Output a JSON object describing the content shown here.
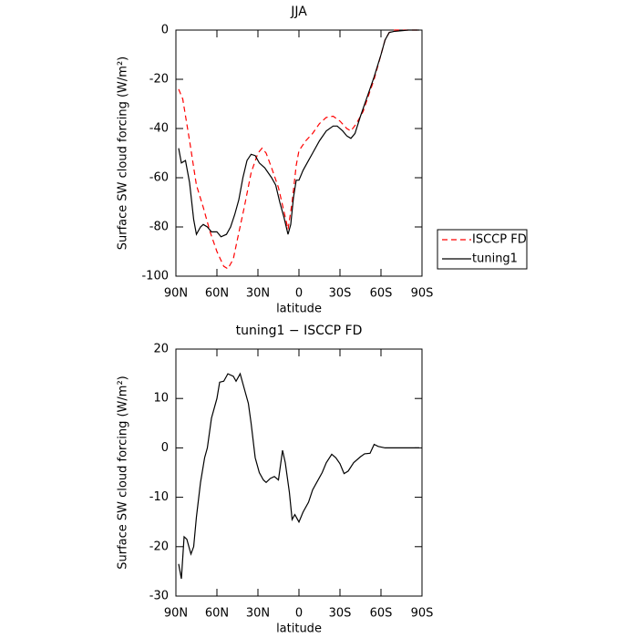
{
  "chart_data": [
    {
      "type": "line",
      "title": "JJA",
      "xlabel": "latitude",
      "ylabel": "Surface SW cloud forcing (W/m²)",
      "xlim": [
        90,
        -90
      ],
      "xticks": [
        {
          "value": 90,
          "label": "90N"
        },
        {
          "value": 60,
          "label": "60N"
        },
        {
          "value": 30,
          "label": "30N"
        },
        0,
        {
          "value": -30,
          "label": "30S"
        },
        {
          "value": -60,
          "label": "60S"
        },
        {
          "value": -90,
          "label": "90S"
        }
      ],
      "ylim": [
        -100,
        0
      ],
      "yticks": [
        -100,
        -80,
        -60,
        -40,
        -20,
        0
      ],
      "legend": "outside right",
      "series": [
        {
          "name": "ISCCP FD",
          "color": "#ff0000",
          "linestyle": "dashed",
          "x": [
            88,
            85,
            80,
            75,
            70,
            65,
            60,
            55,
            52,
            48,
            45,
            40,
            35,
            30,
            27,
            24,
            20,
            15,
            10,
            8,
            5,
            2,
            0,
            -5,
            -10,
            -15,
            -20,
            -25,
            -30,
            -35,
            -38,
            -42,
            -47,
            -50,
            -55,
            -60,
            -63,
            -66,
            -70,
            -80,
            -88
          ],
          "values": [
            -24,
            -28,
            -45,
            -63,
            -72,
            -82,
            -90,
            -96,
            -97,
            -93,
            -85,
            -72,
            -58,
            -50,
            -48,
            -50,
            -56,
            -64,
            -76,
            -81,
            -70,
            -55,
            -49,
            -45,
            -42,
            -38,
            -35.5,
            -35,
            -37,
            -40,
            -41,
            -38,
            -33,
            -28,
            -20,
            -10,
            -4,
            -1,
            0,
            0,
            0
          ]
        },
        {
          "name": "tuning1",
          "color": "#000000",
          "linestyle": "solid",
          "x": [
            88,
            86,
            83,
            80,
            77,
            75,
            72,
            70,
            67,
            64,
            60,
            57,
            53,
            50,
            47,
            44,
            41,
            38,
            35,
            32,
            29,
            25,
            20,
            17,
            14,
            11,
            8,
            6,
            4,
            2,
            0,
            -3,
            -7,
            -10,
            -15,
            -20,
            -25,
            -28,
            -32,
            -35,
            -38,
            -41,
            -45,
            -50,
            -55,
            -60,
            -63,
            -66,
            -70,
            -80,
            -88
          ],
          "values": [
            -48,
            -54,
            -53,
            -62,
            -77,
            -83,
            -80,
            -79,
            -80,
            -82,
            -82,
            -84,
            -83,
            -80,
            -75,
            -69,
            -60,
            -53,
            -50.5,
            -51,
            -54,
            -56,
            -60,
            -63,
            -70,
            -76,
            -83,
            -79,
            -68,
            -61,
            -61,
            -57,
            -53,
            -50,
            -45,
            -41,
            -39,
            -39,
            -41,
            -43,
            -44,
            -42,
            -35,
            -27,
            -19,
            -10,
            -4,
            -1,
            -0.5,
            0,
            0
          ]
        }
      ]
    },
    {
      "type": "line",
      "title": "tuning1 − ISCCP FD",
      "xlabel": "latitude",
      "ylabel": "Surface SW cloud forcing (W/m²)",
      "xlim": [
        90,
        -90
      ],
      "xticks": [
        {
          "value": 90,
          "label": "90N"
        },
        {
          "value": 60,
          "label": "60N"
        },
        {
          "value": 30,
          "label": "30N"
        },
        0,
        {
          "value": -30,
          "label": "30S"
        },
        {
          "value": -60,
          "label": "60S"
        },
        {
          "value": -90,
          "label": "90S"
        }
      ],
      "ylim": [
        -30,
        20
      ],
      "yticks": [
        -30,
        -20,
        -10,
        0,
        10,
        20
      ],
      "series": [
        {
          "color": "#000000",
          "linestyle": "solid",
          "x": [
            88,
            86,
            84,
            82,
            79,
            77,
            75,
            72,
            69,
            67,
            64,
            60,
            58,
            55,
            52,
            48,
            46,
            43,
            40,
            37,
            35,
            32,
            29,
            26,
            24,
            21,
            18,
            15,
            12,
            10,
            7,
            5,
            3,
            0,
            -3,
            -7,
            -10,
            -13,
            -17,
            -20,
            -24,
            -27,
            -30,
            -33,
            -36,
            -40,
            -45,
            -48,
            -52,
            -55,
            -58,
            -63,
            -70,
            -80,
            -88
          ],
          "values": [
            -23.5,
            -26.5,
            -18,
            -18.5,
            -21.5,
            -20,
            -14,
            -7,
            -2,
            0,
            6,
            10,
            13.3,
            13.5,
            15,
            14.5,
            13.5,
            15,
            12,
            9,
            5,
            -2,
            -5,
            -6.5,
            -7,
            -6.2,
            -5.8,
            -6.5,
            -0.5,
            -3,
            -9,
            -14.5,
            -13.5,
            -15,
            -13,
            -11,
            -8.5,
            -7,
            -5,
            -3,
            -1.3,
            -2,
            -3.2,
            -5.2,
            -4.7,
            -3,
            -1.8,
            -1.2,
            -1.1,
            0.7,
            0.3,
            0,
            0,
            0,
            0
          ]
        }
      ]
    }
  ]
}
